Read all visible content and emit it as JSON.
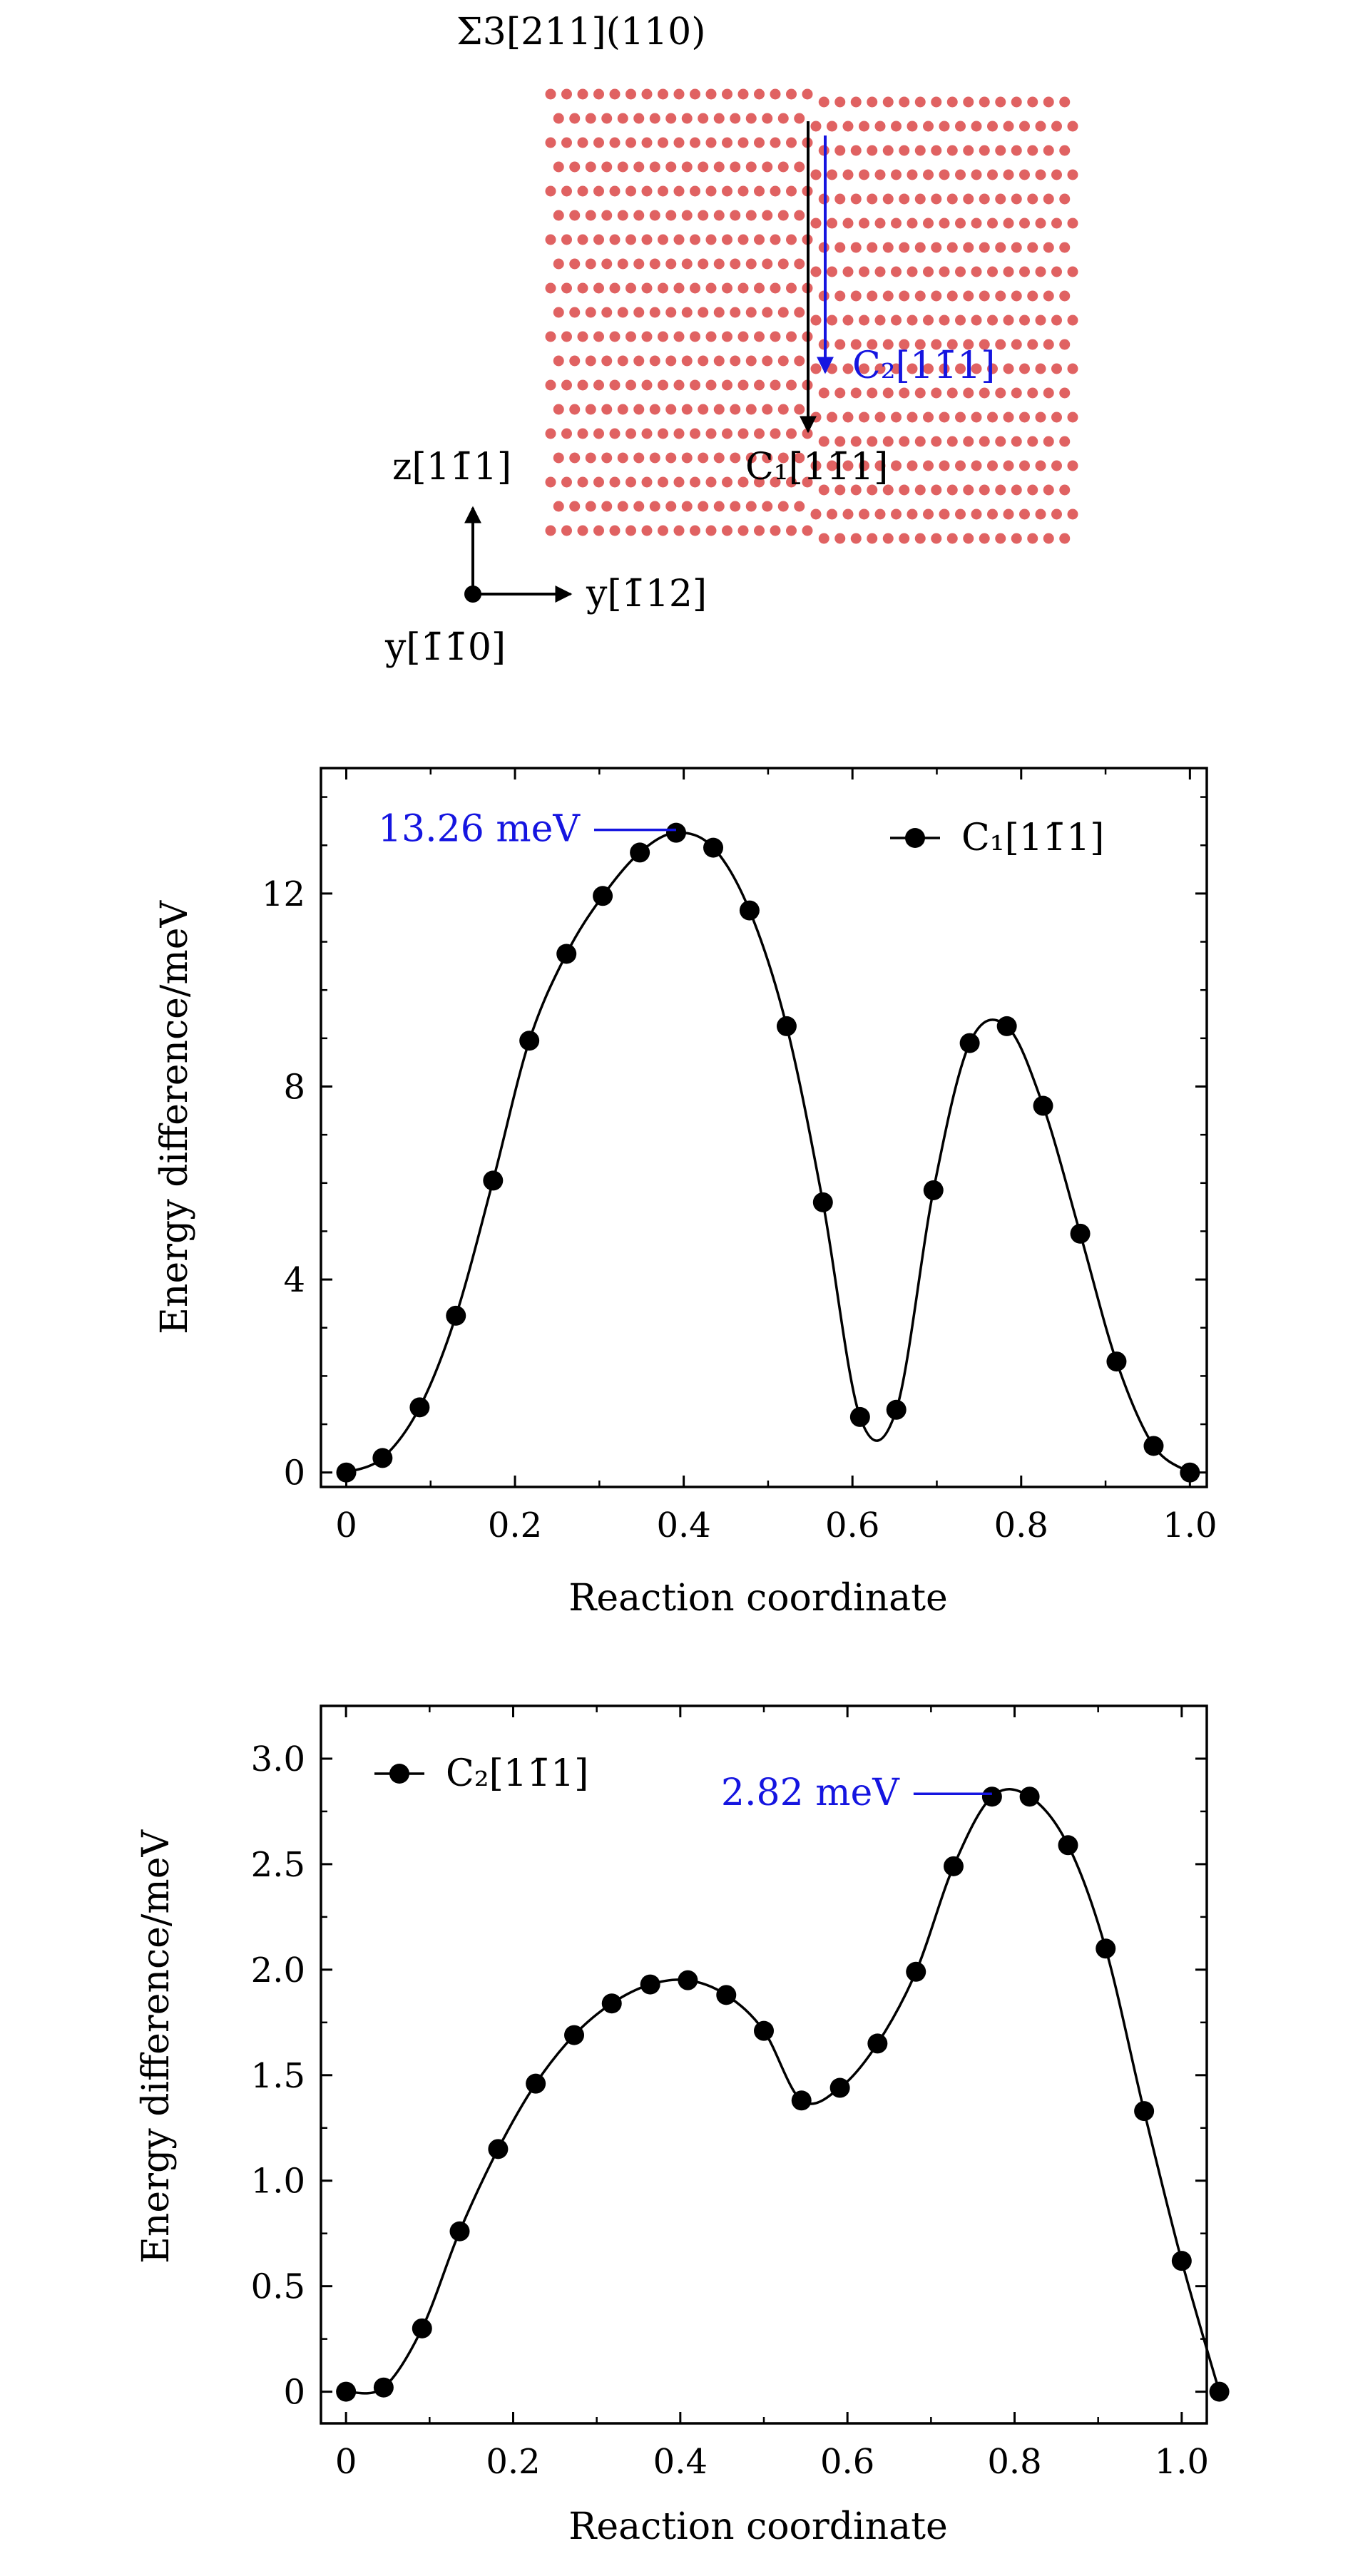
{
  "structure": {
    "title": "Σ3[211](110)",
    "atom_color": "#e06262",
    "arrow_c1": {
      "label": "C₁[11̄1]",
      "color": "#000000"
    },
    "arrow_c2": {
      "label": "C₂[11̄1]",
      "color": "#1515e0"
    },
    "axes": {
      "z_label": "z[11̄1]",
      "y_label": "y[1̄12]",
      "origin_label": "y[1̄1̄0]"
    }
  },
  "chart_data": [
    {
      "type": "line",
      "xlabel": "Reaction coordinate",
      "ylabel": "Energy difference/meV",
      "xlim": [
        -0.03,
        1.02
      ],
      "ylim": [
        -0.3,
        14.6
      ],
      "xticks": [
        0,
        0.2,
        0.4,
        0.6,
        0.8,
        1.0
      ],
      "xtick_labels": [
        "0",
        "0.2",
        "0.4",
        "0.6",
        "0.8",
        "1.0"
      ],
      "yticks": [
        0,
        4,
        8,
        12
      ],
      "ytick_labels": [
        "0",
        "4",
        "8",
        "12"
      ],
      "grid": false,
      "legend": "top-right",
      "series": [
        {
          "name": "C₁[11̄1]",
          "color": "#000000",
          "x": [
            0,
            0.043,
            0.087,
            0.13,
            0.174,
            0.217,
            0.261,
            0.304,
            0.348,
            0.391,
            0.435,
            0.478,
            0.522,
            0.565,
            0.609,
            0.652,
            0.696,
            0.739,
            0.783,
            0.826,
            0.87,
            0.913,
            0.957,
            1.0
          ],
          "y": [
            0.0,
            0.3,
            1.35,
            3.25,
            6.05,
            8.95,
            10.75,
            11.95,
            12.85,
            13.26,
            12.95,
            11.65,
            9.25,
            5.6,
            1.15,
            1.3,
            5.85,
            8.9,
            9.25,
            7.6,
            4.95,
            2.3,
            0.55,
            0.0
          ]
        }
      ],
      "annotations": [
        {
          "text": "13.26 meV",
          "x": 0.391,
          "y": 13.26,
          "color": "#1515e0"
        }
      ]
    },
    {
      "type": "line",
      "xlabel": "Reaction coordinate",
      "ylabel": "Energy difference/meV",
      "xlim": [
        -0.03,
        1.03
      ],
      "ylim": [
        -0.15,
        3.25
      ],
      "xticks": [
        0,
        0.2,
        0.4,
        0.6,
        0.8,
        1.0
      ],
      "xtick_labels": [
        "0",
        "0.2",
        "0.4",
        "0.6",
        "0.8",
        "1.0"
      ],
      "yticks": [
        0,
        0.5,
        1.0,
        1.5,
        2.0,
        2.5,
        3.0
      ],
      "ytick_labels": [
        "0",
        "0.5",
        "1.0",
        "1.5",
        "2.0",
        "2.5",
        "3.0"
      ],
      "grid": false,
      "legend": "top-left",
      "series": [
        {
          "name": "C₂[11̄1]",
          "color": "#000000",
          "x": [
            0,
            0.045,
            0.091,
            0.136,
            0.182,
            0.227,
            0.273,
            0.318,
            0.364,
            0.409,
            0.455,
            0.5,
            0.545,
            0.591,
            0.636,
            0.682,
            0.727,
            0.773,
            0.818,
            0.864,
            0.909,
            0.955,
            1.0,
            1.045
          ],
          "y": [
            0.0,
            0.02,
            0.3,
            0.76,
            1.15,
            1.46,
            1.69,
            1.84,
            1.93,
            1.95,
            1.88,
            1.71,
            1.38,
            1.44,
            1.65,
            1.99,
            2.49,
            2.82,
            2.82,
            2.59,
            2.1,
            1.33,
            0.62,
            0.0
          ]
        }
      ],
      "annotations": [
        {
          "text": "2.82 meV",
          "x": 0.773,
          "y": 2.82,
          "color": "#1515e0"
        }
      ]
    }
  ]
}
